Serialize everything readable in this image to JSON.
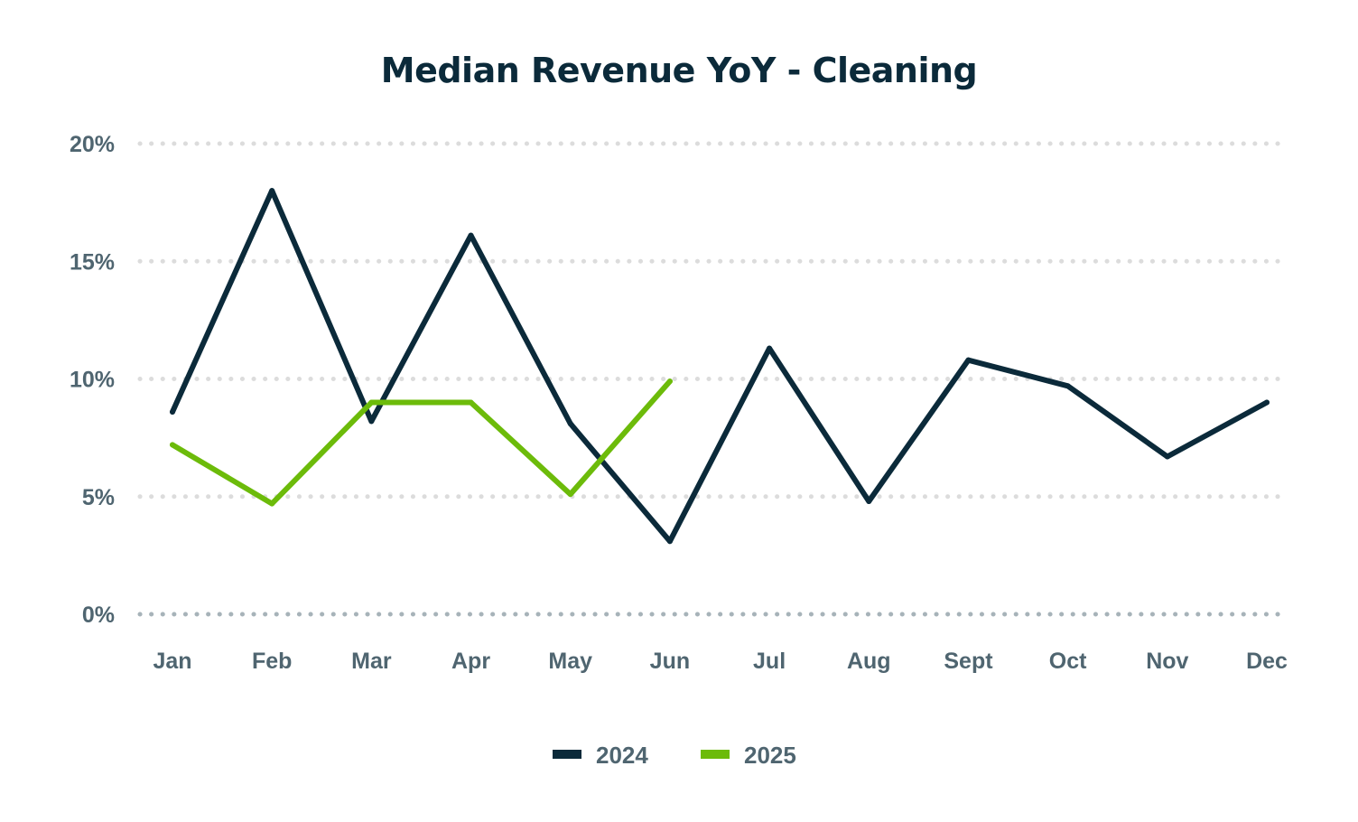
{
  "chart_data": {
    "type": "line",
    "title": "Median Revenue YoY - Cleaning",
    "xlabel": "",
    "ylabel": "",
    "categories": [
      "Jan",
      "Feb",
      "Mar",
      "Apr",
      "May",
      "Jun",
      "Jul",
      "Aug",
      "Sept",
      "Oct",
      "Nov",
      "Dec"
    ],
    "yticks": [
      0,
      5,
      10,
      15,
      20
    ],
    "ytick_labels": [
      "0%",
      "5%",
      "10%",
      "15%",
      "20%"
    ],
    "ylim": [
      0,
      20
    ],
    "grid": "horizontal dotted",
    "legend_position": "bottom-center",
    "series": [
      {
        "name": "2024",
        "color": "#0b2a3a",
        "values": [
          8.6,
          18.0,
          8.2,
          16.1,
          8.1,
          3.1,
          11.3,
          4.8,
          10.8,
          9.7,
          6.7,
          9.0
        ]
      },
      {
        "name": "2025",
        "color": "#6cbb0a",
        "values": [
          7.2,
          4.7,
          9.0,
          9.0,
          5.1,
          9.9
        ]
      }
    ]
  },
  "colors": {
    "title": "#0b2a3a",
    "label": "#4f6570",
    "grid": "#dcdcdc",
    "baseline": "#a7b3b9"
  }
}
